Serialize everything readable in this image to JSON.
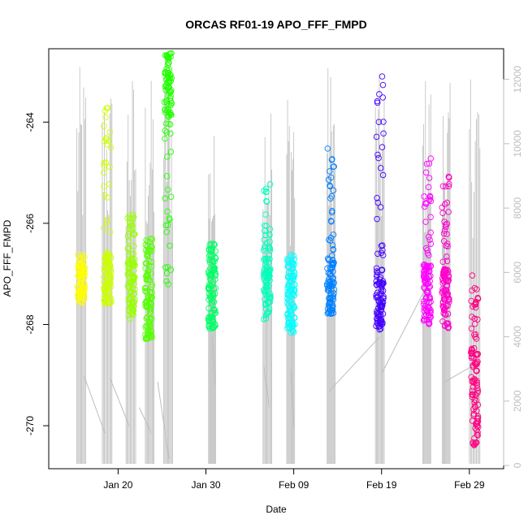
{
  "chart_data": {
    "type": "scatter",
    "title": "ORCAS RF01-19 APO_FFF_FMPD",
    "xlabel": "Date",
    "ylabel": "APO_FFF_FMPD",
    "x_ticks": [
      "Jan 20",
      "Jan 30",
      "Feb 09",
      "Feb 19",
      "Feb 29"
    ],
    "x_tick_days": [
      20,
      30,
      40,
      50,
      60
    ],
    "xlim_days": [
      12.1,
      63.9
    ],
    "y_ticks": [
      -270,
      -268,
      -266,
      -264
    ],
    "ylim": [
      -270.85,
      -262.55
    ],
    "y2_ticks": [
      0,
      2000,
      4000,
      6000,
      8000,
      10000,
      12000
    ],
    "y2lim": [
      -100,
      12950
    ],
    "y2_color": "#bdbdbd",
    "grid": false,
    "legend": "none",
    "flights": [
      {
        "day": 15.8,
        "color": "#FFFF00",
        "dense": [
          -267.6,
          -266.6
        ],
        "sparse": []
      },
      {
        "day": 18.8,
        "color": "#CCFF00",
        "dense": [
          -267.6,
          -266.6
        ],
        "sparse": [
          -266.6,
          -263.6
        ]
      },
      {
        "day": 21.5,
        "color": "#99FF00",
        "dense": [
          -267.9,
          -266.7
        ],
        "sparse": [
          -266.7,
          -265.8
        ]
      },
      {
        "day": 23.5,
        "color": "#55FF00",
        "dense": [
          -268.3,
          -266.9
        ],
        "sparse": [
          -266.9,
          -266.3
        ]
      },
      {
        "day": 25.7,
        "color": "#22FF00",
        "dense": [
          -263.9,
          -262.6
        ],
        "sparse": [
          -267.5,
          -263.9
        ]
      },
      {
        "day": 30.7,
        "color": "#00FF66",
        "dense": [
          -268.1,
          -266.8
        ],
        "sparse": [
          -266.8,
          -266.4
        ]
      },
      {
        "day": 37.0,
        "color": "#00FFBB",
        "dense": [
          -267.9,
          -266.7
        ],
        "sparse": [
          -266.7,
          -265.2
        ]
      },
      {
        "day": 39.7,
        "color": "#00FFFF",
        "dense": [
          -268.2,
          -267.0
        ],
        "sparse": [
          -267.0,
          -266.6
        ]
      },
      {
        "day": 44.2,
        "color": "#0080FF",
        "dense": [
          -267.8,
          -266.7
        ],
        "sparse": [
          -266.7,
          -264.5
        ]
      },
      {
        "day": 49.8,
        "color": "#4400FF",
        "dense": [
          -268.1,
          -266.9
        ],
        "sparse": [
          -266.9,
          -262.9
        ]
      },
      {
        "day": 55.2,
        "color": "#FF00FF",
        "dense": [
          -268.0,
          -266.8
        ],
        "sparse": [
          -266.8,
          -264.4
        ]
      },
      {
        "day": 57.3,
        "color": "#FF00CC",
        "dense": [
          -268.1,
          -266.9
        ],
        "sparse": [
          -266.9,
          -265.0
        ]
      },
      {
        "day": 60.6,
        "color": "#FF0080",
        "dense": [
          -270.4,
          -268.5
        ],
        "sparse": [
          -268.5,
          -267.0
        ]
      }
    ],
    "altitude_series": {
      "name": "",
      "color": "#bdbdbd",
      "legs": [
        {
          "start": 15.3,
          "end": 16.3,
          "max": 12400
        },
        {
          "start": 18.2,
          "end": 19.3,
          "max": 12100
        },
        {
          "start": 20.9,
          "end": 22.0,
          "max": 12400
        },
        {
          "start": 23.1,
          "end": 24.1,
          "max": 12100
        },
        {
          "start": 25.2,
          "end": 26.2,
          "max": 12800
        },
        {
          "start": 30.3,
          "end": 31.1,
          "max": 10500
        },
        {
          "start": 36.5,
          "end": 37.5,
          "max": 12000
        },
        {
          "start": 39.2,
          "end": 40.1,
          "max": 12200
        },
        {
          "start": 43.8,
          "end": 44.7,
          "max": 12600
        },
        {
          "start": 49.3,
          "end": 50.3,
          "max": 12200
        },
        {
          "start": 54.7,
          "end": 55.6,
          "max": 12300
        },
        {
          "start": 56.9,
          "end": 57.8,
          "max": 11900
        },
        {
          "start": 60.0,
          "end": 61.2,
          "max": 12800
        }
      ],
      "connectors": [
        [
          16.1,
          2800
        ],
        [
          18.5,
          1000
        ],
        [
          19.1,
          2700
        ],
        [
          21.3,
          1200
        ],
        [
          22.4,
          1800
        ],
        [
          23.8,
          1000
        ],
        [
          24.5,
          2600
        ],
        [
          25.8,
          200
        ],
        [
          30.7,
          4000
        ],
        [
          31.1,
          2500
        ],
        [
          36.6,
          3100
        ],
        [
          37.2,
          1800
        ],
        [
          39.7,
          3000
        ],
        [
          40.0,
          1200
        ],
        [
          44.0,
          2300
        ],
        [
          49.8,
          4000
        ],
        [
          50.1,
          2900
        ],
        [
          55.0,
          5500
        ],
        [
          57.2,
          2600
        ],
        [
          60.4,
          3100
        ]
      ]
    }
  }
}
